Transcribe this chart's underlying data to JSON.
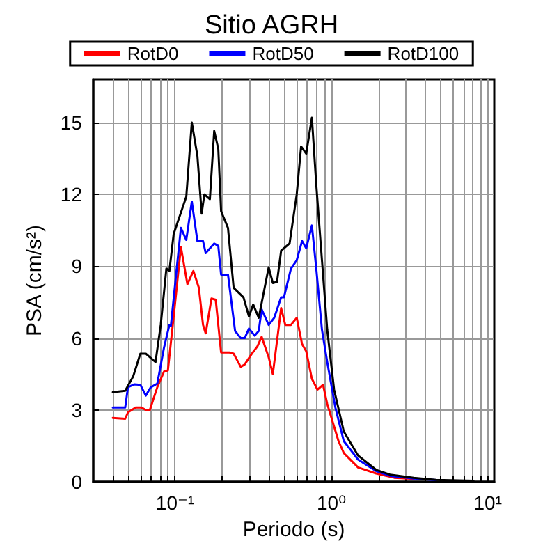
{
  "chart_data": {
    "type": "line",
    "title": "Sitio AGRH",
    "xlabel": "Periodo (s)",
    "ylabel": "PSA (cm/s²)",
    "log": "x",
    "grid": true,
    "legend": "top",
    "marker": "none",
    "line_style": "solid",
    "xlim": [
      0.03,
      11
    ],
    "ylim": [
      0,
      16.8
    ],
    "xticks": [
      {
        "value": 0.04,
        "label": null
      },
      {
        "value": 0.05,
        "label": null
      },
      {
        "value": 0.06,
        "label": null
      },
      {
        "value": 0.07,
        "label": null
      },
      {
        "value": 0.08,
        "label": null
      },
      {
        "value": 0.09,
        "label": null
      },
      {
        "value": 0.1,
        "label": "10⁻¹"
      },
      {
        "value": 0.2,
        "label": null
      },
      {
        "value": 0.3,
        "label": null
      },
      {
        "value": 0.4,
        "label": null
      },
      {
        "value": 0.5,
        "label": null
      },
      {
        "value": 0.6,
        "label": null
      },
      {
        "value": 0.7,
        "label": null
      },
      {
        "value": 0.8,
        "label": null
      },
      {
        "value": 0.9,
        "label": null
      },
      {
        "value": 1,
        "label": "10⁰"
      },
      {
        "value": 2,
        "label": null
      },
      {
        "value": 3,
        "label": null
      },
      {
        "value": 4,
        "label": null
      },
      {
        "value": 5,
        "label": null
      },
      {
        "value": 6,
        "label": null
      },
      {
        "value": 7,
        "label": null
      },
      {
        "value": 8,
        "label": null
      },
      {
        "value": 9,
        "label": null
      },
      {
        "value": 10,
        "label": "10¹"
      }
    ],
    "yticks": [
      0,
      3,
      6,
      9,
      12,
      15
    ],
    "series": [
      {
        "name": "RotD0",
        "color": "#ff0000",
        "x": [
          0.04,
          0.048,
          0.05,
          0.056,
          0.061,
          0.065,
          0.069,
          0.077,
          0.085,
          0.09,
          0.098,
          0.109,
          0.12,
          0.131,
          0.142,
          0.151,
          0.157,
          0.171,
          0.182,
          0.197,
          0.223,
          0.237,
          0.263,
          0.279,
          0.31,
          0.336,
          0.358,
          0.397,
          0.422,
          0.477,
          0.507,
          0.551,
          0.6,
          0.649,
          0.69,
          0.75,
          0.814,
          0.884,
          0.94,
          1.11,
          1.2,
          1.48,
          1.93,
          2.52,
          3.36
        ],
        "values": [
          2.67,
          2.63,
          2.9,
          3.1,
          3.1,
          3.0,
          3.0,
          3.95,
          4.6,
          4.65,
          6.9,
          9.8,
          8.25,
          8.8,
          8.1,
          6.55,
          6.2,
          7.65,
          7.6,
          5.4,
          5.4,
          5.35,
          4.8,
          4.9,
          5.35,
          5.65,
          6.05,
          5.2,
          4.5,
          7.25,
          6.55,
          6.55,
          6.85,
          5.75,
          5.45,
          4.3,
          3.85,
          4.05,
          3.25,
          1.7,
          1.2,
          0.6,
          0.35,
          0.17,
          0.12
        ]
      },
      {
        "name": "RotD50",
        "color": "#0000ff",
        "x": [
          0.04,
          0.048,
          0.05,
          0.055,
          0.06,
          0.065,
          0.07,
          0.077,
          0.085,
          0.092,
          0.094,
          0.109,
          0.118,
          0.128,
          0.139,
          0.151,
          0.157,
          0.178,
          0.189,
          0.197,
          0.218,
          0.242,
          0.263,
          0.279,
          0.297,
          0.323,
          0.343,
          0.358,
          0.397,
          0.431,
          0.477,
          0.497,
          0.551,
          0.6,
          0.649,
          0.69,
          0.75,
          0.8,
          0.87,
          0.94,
          1.06,
          1.2,
          1.48,
          1.93,
          2.37,
          3.36,
          4.67
        ],
        "values": [
          3.1,
          3.1,
          3.95,
          4.07,
          4.05,
          3.6,
          3.95,
          4.1,
          5.6,
          6.55,
          6.5,
          10.6,
          10.1,
          11.7,
          10.05,
          10.05,
          9.55,
          9.95,
          9.85,
          8.65,
          8.65,
          6.3,
          6.0,
          6.0,
          6.4,
          6.1,
          6.3,
          7.2,
          6.55,
          6.85,
          7.7,
          7.7,
          8.9,
          9.25,
          10.05,
          9.75,
          10.7,
          8.9,
          6.35,
          5.0,
          3.1,
          1.7,
          0.93,
          0.45,
          0.25,
          0.14,
          0.07
        ]
      },
      {
        "name": "RotD100",
        "color": "#000000",
        "x": [
          0.04,
          0.048,
          0.054,
          0.06,
          0.065,
          0.072,
          0.075,
          0.081,
          0.088,
          0.092,
          0.098,
          0.118,
          0.128,
          0.139,
          0.148,
          0.154,
          0.167,
          0.178,
          0.189,
          0.197,
          0.218,
          0.237,
          0.274,
          0.297,
          0.316,
          0.343,
          0.397,
          0.422,
          0.449,
          0.477,
          0.54,
          0.6,
          0.64,
          0.69,
          0.75,
          0.8,
          0.87,
          0.94,
          1.04,
          1.2,
          1.48,
          1.93,
          2.37,
          3.36,
          4.67,
          8.1
        ],
        "values": [
          3.74,
          3.8,
          4.4,
          5.35,
          5.35,
          5.1,
          5.0,
          6.55,
          8.9,
          8.8,
          10.35,
          11.9,
          15.0,
          13.6,
          11.2,
          12.0,
          11.8,
          14.65,
          13.9,
          11.3,
          10.6,
          8.1,
          7.7,
          6.9,
          7.4,
          6.85,
          8.95,
          8.3,
          8.35,
          9.65,
          9.95,
          12.0,
          14.0,
          13.7,
          15.2,
          12.4,
          9.25,
          6.35,
          3.85,
          2.1,
          1.1,
          0.5,
          0.3,
          0.17,
          0.08,
          0.04
        ]
      }
    ]
  }
}
